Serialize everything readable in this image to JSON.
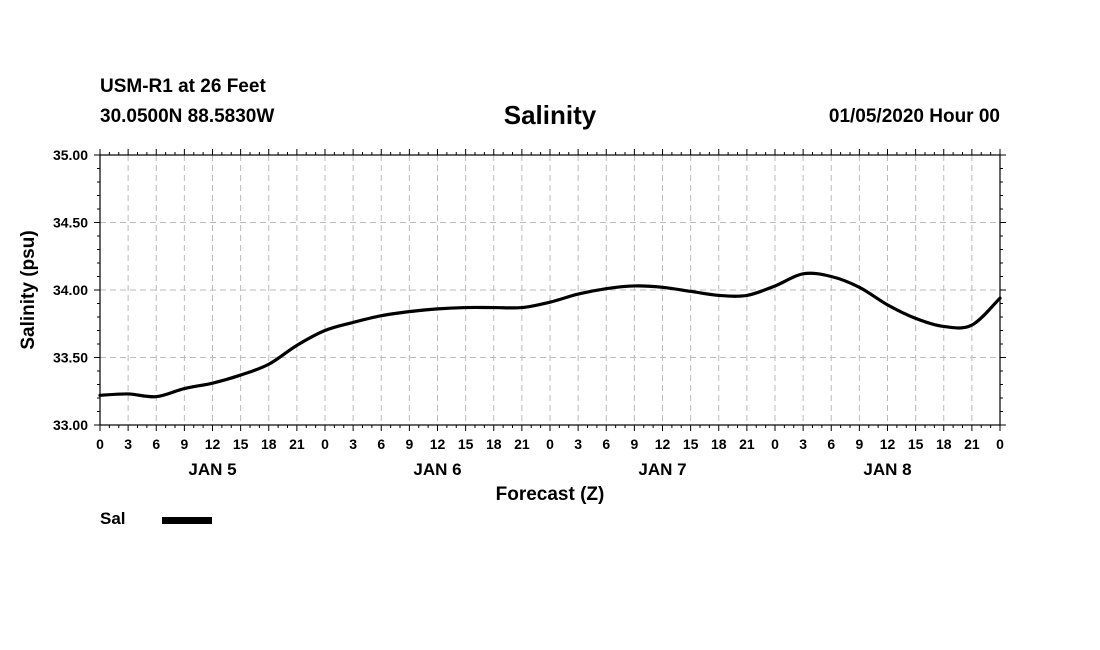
{
  "header": {
    "station": "USM-R1 at 26 Feet",
    "coords": "30.0500N 88.5830W",
    "title": "Salinity",
    "datetime": "01/05/2020 Hour 00"
  },
  "chart_data": {
    "type": "line",
    "title": "Salinity",
    "xlabel": "Forecast (Z)",
    "ylabel": "Salinity (psu)",
    "ylim": [
      33.0,
      35.0
    ],
    "yticks": [
      "33.00",
      "33.50",
      "34.00",
      "34.50",
      "35.00"
    ],
    "xlim": [
      0,
      96
    ],
    "xticks": [
      "0",
      "3",
      "6",
      "9",
      "12",
      "15",
      "18",
      "21",
      "0",
      "3",
      "6",
      "9",
      "12",
      "15",
      "18",
      "21",
      "0",
      "3",
      "6",
      "9",
      "12",
      "15",
      "18",
      "21",
      "0",
      "3",
      "6",
      "9",
      "12",
      "15",
      "18",
      "21",
      "0"
    ],
    "day_labels": [
      "JAN 5",
      "JAN 6",
      "JAN 7",
      "JAN 8"
    ],
    "grid": true,
    "legend_position": "bottom-left",
    "series": [
      {
        "name": "Sal",
        "color": "#000000",
        "x": [
          0,
          3,
          6,
          9,
          12,
          15,
          18,
          21,
          24,
          27,
          30,
          33,
          36,
          39,
          42,
          45,
          48,
          51,
          54,
          57,
          60,
          63,
          66,
          69,
          72,
          75,
          78,
          81,
          84,
          87,
          90,
          93,
          96
        ],
        "values": [
          33.22,
          33.23,
          33.21,
          33.27,
          33.31,
          33.37,
          33.45,
          33.59,
          33.7,
          33.76,
          33.81,
          33.84,
          33.86,
          33.87,
          33.87,
          33.87,
          33.91,
          33.97,
          34.01,
          34.03,
          34.02,
          33.99,
          33.96,
          33.96,
          34.03,
          34.12,
          34.1,
          34.02,
          33.89,
          33.79,
          33.73,
          33.74,
          33.94
        ]
      }
    ]
  }
}
